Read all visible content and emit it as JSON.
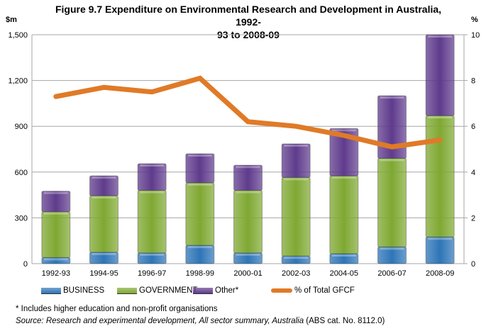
{
  "chart_data": {
    "type": "bar",
    "stacked": true,
    "title": "Figure 9.7 Expenditure on Environmental Research and Development in Australia, 1992-93 to 2008-09",
    "title_line1": "Figure 9.7 Expenditure on Environmental Research and Development in Australia, 1992-",
    "title_line2": "93 to 2008-09",
    "ylabel": "$m",
    "y2label": "%",
    "ylim": [
      0,
      1500
    ],
    "y2lim": [
      0,
      10
    ],
    "yticks": [
      "0",
      "300",
      "600",
      "900",
      "1,200",
      "1,500"
    ],
    "y2ticks": [
      "0",
      "2",
      "4",
      "6",
      "8",
      "10"
    ],
    "grid": true,
    "legend_position": "bottom",
    "categories": [
      "1992-93",
      "1994-95",
      "1996-97",
      "1998-99",
      "2000-01",
      "2002-03",
      "2004-05",
      "2006-07",
      "2008-09"
    ],
    "series": [
      {
        "name": "BUSINESS",
        "type": "bar",
        "color": "#2e75b6",
        "values": [
          40,
          75,
          70,
          120,
          70,
          50,
          65,
          110,
          175
        ]
      },
      {
        "name": "GOVERNMENT",
        "type": "bar",
        "color": "#7fa832",
        "values": [
          300,
          370,
          410,
          410,
          410,
          515,
          510,
          580,
          795
        ]
      },
      {
        "name": "Other*",
        "type": "bar",
        "color": "#5f3b8c",
        "values": [
          135,
          130,
          175,
          190,
          165,
          220,
          310,
          410,
          530
        ]
      },
      {
        "name": "% of Total GFCF",
        "type": "line",
        "axis": "right",
        "color": "#e07a27",
        "values": [
          7.3,
          7.7,
          7.5,
          8.1,
          6.2,
          6.0,
          5.6,
          5.1,
          5.4
        ]
      }
    ]
  },
  "notes": {
    "footnote": "* Includes higher education and non-profit organisations",
    "source_italic": "Source: Research and experimental development, All sector summary, Australia",
    "source_plain": " (ABS cat. No. 8112.0)"
  }
}
